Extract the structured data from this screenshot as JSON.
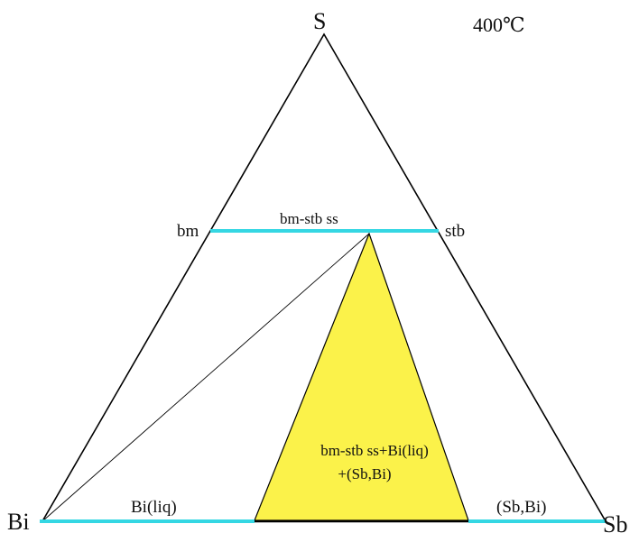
{
  "temperature": "400℃",
  "vertices": {
    "top": "S",
    "left": "Bi",
    "right": "Sb"
  },
  "phases": {
    "bm": "bm",
    "stb": "stb",
    "solid_solution": "bm-stb ss",
    "bi_liq": "Bi(liq)",
    "sb_bi": "(Sb,Bi)"
  },
  "three_phase_field": {
    "line1": "bm-stb ss+Bi(liq)",
    "line2": "+(Sb,Bi)"
  },
  "colors": {
    "outline": "#000000",
    "phase_line": "#35d7e3",
    "three_phase_fill": "#fbf24a"
  }
}
